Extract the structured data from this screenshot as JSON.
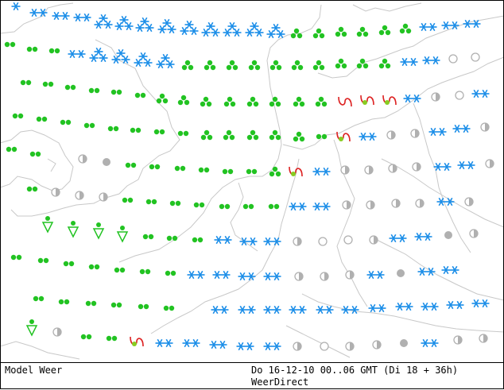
{
  "footer": {
    "left": "Model Weer",
    "center": "Do 16-12-10 00..06 GMT (Di 18 + 36h)",
    "sub": "WeerDirect"
  },
  "colors": {
    "snow": "#1a8de8",
    "rain": "#22c322",
    "mixed": "#dd2222",
    "mixed_dot": "#88cc22",
    "cloud": "#b0b0b0",
    "coast": "#c8c8c8",
    "border": "#000000"
  },
  "legend_symbols": {
    "snow": "snow-icon",
    "drizzle": "drizzle-icon",
    "rain": "rain-icon",
    "showers": "shower-icon",
    "sleet": "sleet-icon",
    "overcast": "overcast-icon",
    "partly_cloudy": "half-cloud-icon",
    "clear": "clear-icon"
  },
  "symbols": [
    [
      "s1",
      20,
      8
    ],
    [
      "s2",
      48,
      16
    ],
    [
      "s2",
      76,
      20
    ],
    [
      "s2",
      103,
      22
    ],
    [
      "s3",
      130,
      28
    ],
    [
      "s3",
      156,
      30
    ],
    [
      "s3",
      182,
      32
    ],
    [
      "s3",
      210,
      34
    ],
    [
      "s3",
      238,
      36
    ],
    [
      "s3",
      265,
      38
    ],
    [
      "s3",
      292,
      38
    ],
    [
      "s3",
      320,
      38
    ],
    [
      "s3",
      347,
      40
    ],
    [
      "r3",
      373,
      42
    ],
    [
      "r3",
      401,
      42
    ],
    [
      "r3",
      429,
      40
    ],
    [
      "r3",
      456,
      40
    ],
    [
      "r3",
      484,
      38
    ],
    [
      "r3",
      510,
      36
    ],
    [
      "s2",
      538,
      34
    ],
    [
      "s2",
      566,
      32
    ],
    [
      "s2",
      593,
      30
    ],
    [
      "r2",
      12,
      56
    ],
    [
      "r2",
      40,
      62
    ],
    [
      "r2",
      68,
      64
    ],
    [
      "s2",
      96,
      68
    ],
    [
      "s3",
      124,
      70
    ],
    [
      "s3",
      152,
      72
    ],
    [
      "s3",
      180,
      76
    ],
    [
      "s3",
      208,
      78
    ],
    [
      "r3",
      236,
      82
    ],
    [
      "r3",
      264,
      82
    ],
    [
      "r3",
      292,
      82
    ],
    [
      "r3",
      320,
      82
    ],
    [
      "r3",
      347,
      82
    ],
    [
      "r3",
      374,
      82
    ],
    [
      "r3",
      401,
      82
    ],
    [
      "r3",
      429,
      80
    ],
    [
      "r3",
      456,
      80
    ],
    [
      "r3",
      484,
      80
    ],
    [
      "s2",
      514,
      78
    ],
    [
      "s2",
      542,
      76
    ],
    [
      "c3",
      570,
      74
    ],
    [
      "c3",
      598,
      72
    ],
    [
      "r2",
      32,
      104
    ],
    [
      "r2",
      60,
      106
    ],
    [
      "r2",
      88,
      110
    ],
    [
      "r2",
      118,
      114
    ],
    [
      "r2",
      146,
      116
    ],
    [
      "r2",
      176,
      120
    ],
    [
      "r3",
      204,
      124
    ],
    [
      "r3",
      231,
      126
    ],
    [
      "r3",
      259,
      128
    ],
    [
      "r3",
      289,
      128
    ],
    [
      "r3",
      318,
      128
    ],
    [
      "r3",
      346,
      128
    ],
    [
      "r3",
      376,
      128
    ],
    [
      "r3",
      404,
      128
    ],
    [
      "x",
      434,
      128
    ],
    [
      "xd",
      462,
      126
    ],
    [
      "xd",
      490,
      126
    ],
    [
      "s2",
      518,
      124
    ],
    [
      "c2",
      548,
      122
    ],
    [
      "c3",
      578,
      120
    ],
    [
      "s2",
      604,
      118
    ],
    [
      "r2",
      22,
      146
    ],
    [
      "r2",
      52,
      150
    ],
    [
      "r2",
      82,
      154
    ],
    [
      "r2",
      112,
      158
    ],
    [
      "r2",
      142,
      162
    ],
    [
      "r2",
      170,
      164
    ],
    [
      "r2",
      200,
      166
    ],
    [
      "r2",
      230,
      168
    ],
    [
      "r3",
      260,
      170
    ],
    [
      "r3",
      288,
      170
    ],
    [
      "r3",
      318,
      170
    ],
    [
      "r3",
      346,
      170
    ],
    [
      "r3",
      376,
      172
    ],
    [
      "r2",
      404,
      172
    ],
    [
      "xd",
      432,
      172
    ],
    [
      "s2",
      462,
      172
    ],
    [
      "c2",
      492,
      170
    ],
    [
      "c2",
      522,
      168
    ],
    [
      "s2",
      550,
      166
    ],
    [
      "s2",
      580,
      162
    ],
    [
      "c2",
      610,
      160
    ],
    [
      "r2",
      14,
      188
    ],
    [
      "r2",
      44,
      194
    ],
    [
      "c2",
      104,
      200
    ],
    [
      "c1",
      134,
      204
    ],
    [
      "r2",
      164,
      208
    ],
    [
      "r2",
      194,
      210
    ],
    [
      "r2",
      226,
      212
    ],
    [
      "r2",
      256,
      214
    ],
    [
      "r2",
      286,
      216
    ],
    [
      "r2",
      316,
      216
    ],
    [
      "r3",
      346,
      216
    ],
    [
      "xd",
      372,
      216
    ],
    [
      "s2",
      404,
      216
    ],
    [
      "c2",
      434,
      214
    ],
    [
      "c2",
      464,
      214
    ],
    [
      "c2",
      494,
      212
    ],
    [
      "c2",
      524,
      210
    ],
    [
      "s2",
      556,
      210
    ],
    [
      "s2",
      586,
      208
    ],
    [
      "c2",
      616,
      206
    ],
    [
      "r2",
      40,
      238
    ],
    [
      "c2",
      70,
      242
    ],
    [
      "c2",
      100,
      246
    ],
    [
      "c2",
      130,
      248
    ],
    [
      "r2",
      160,
      252
    ],
    [
      "r2",
      190,
      254
    ],
    [
      "r2",
      220,
      256
    ],
    [
      "r2",
      250,
      258
    ],
    [
      "r2",
      282,
      260
    ],
    [
      "r2",
      312,
      260
    ],
    [
      "r2",
      344,
      260
    ],
    [
      "s2",
      374,
      260
    ],
    [
      "s2",
      404,
      260
    ],
    [
      "c2",
      436,
      258
    ],
    [
      "c2",
      466,
      258
    ],
    [
      "c2",
      498,
      256
    ],
    [
      "c2",
      528,
      256
    ],
    [
      "s2",
      560,
      254
    ],
    [
      "c2",
      590,
      254
    ],
    [
      "v",
      60,
      282
    ],
    [
      "v",
      92,
      288
    ],
    [
      "v",
      124,
      290
    ],
    [
      "v",
      154,
      294
    ],
    [
      "r2",
      186,
      298
    ],
    [
      "r2",
      216,
      300
    ],
    [
      "r2",
      248,
      302
    ],
    [
      "s2",
      280,
      302
    ],
    [
      "s2",
      312,
      304
    ],
    [
      "s2",
      342,
      304
    ],
    [
      "c2",
      374,
      304
    ],
    [
      "c3",
      406,
      304
    ],
    [
      "c3",
      438,
      302
    ],
    [
      "c2",
      470,
      302
    ],
    [
      "s2",
      500,
      300
    ],
    [
      "s2",
      532,
      298
    ],
    [
      "c1",
      564,
      296
    ],
    [
      "c2",
      596,
      294
    ],
    [
      "r2",
      20,
      324
    ],
    [
      "r2",
      54,
      328
    ],
    [
      "r2",
      86,
      332
    ],
    [
      "r2",
      118,
      336
    ],
    [
      "r2",
      150,
      340
    ],
    [
      "r2",
      182,
      342
    ],
    [
      "r2",
      214,
      344
    ],
    [
      "s2",
      246,
      346
    ],
    [
      "s2",
      278,
      346
    ],
    [
      "s2",
      310,
      348
    ],
    [
      "s2",
      342,
      348
    ],
    [
      "c2",
      376,
      348
    ],
    [
      "c2",
      408,
      348
    ],
    [
      "c2",
      440,
      346
    ],
    [
      "s2",
      472,
      346
    ],
    [
      "c1",
      504,
      344
    ],
    [
      "s2",
      536,
      342
    ],
    [
      "s2",
      566,
      340
    ],
    [
      "r2",
      48,
      376
    ],
    [
      "r2",
      80,
      380
    ],
    [
      "r2",
      114,
      382
    ],
    [
      "r2",
      146,
      384
    ],
    [
      "r2",
      180,
      386
    ],
    [
      "r2",
      212,
      388
    ],
    [
      "s2",
      276,
      390
    ],
    [
      "s2",
      310,
      390
    ],
    [
      "s2",
      342,
      390
    ],
    [
      "s2",
      374,
      390
    ],
    [
      "s2",
      408,
      390
    ],
    [
      "s2",
      440,
      390
    ],
    [
      "s2",
      474,
      388
    ],
    [
      "s2",
      508,
      386
    ],
    [
      "s2",
      540,
      386
    ],
    [
      "s2",
      572,
      384
    ],
    [
      "s2",
      604,
      382
    ],
    [
      "v",
      40,
      412
    ],
    [
      "c2",
      72,
      418
    ],
    [
      "r2",
      108,
      424
    ],
    [
      "r2",
      140,
      426
    ],
    [
      "xd",
      172,
      430
    ],
    [
      "s2",
      206,
      432
    ],
    [
      "s2",
      240,
      432
    ],
    [
      "s2",
      274,
      434
    ],
    [
      "s2",
      308,
      436
    ],
    [
      "s2",
      342,
      436
    ],
    [
      "c2",
      374,
      436
    ],
    [
      "c3",
      408,
      436
    ],
    [
      "c2",
      440,
      436
    ],
    [
      "c2",
      474,
      434
    ],
    [
      "c1",
      508,
      432
    ],
    [
      "s2",
      540,
      432
    ],
    [
      "c2",
      576,
      428
    ],
    [
      "c2",
      608,
      426
    ]
  ]
}
